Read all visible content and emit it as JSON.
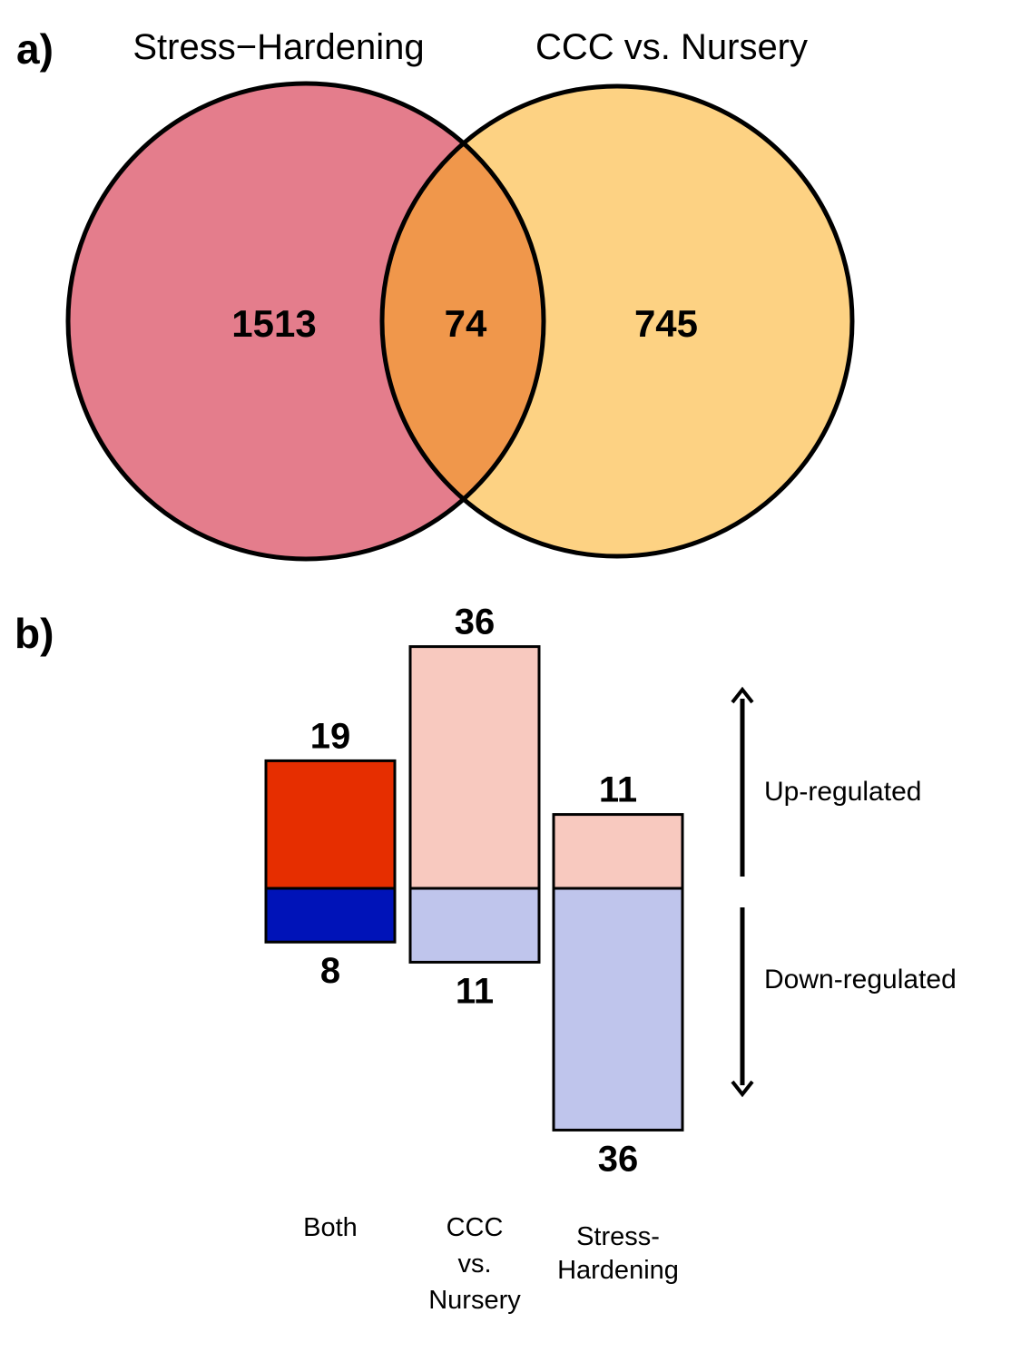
{
  "panel_a": {
    "label": "a)"
  },
  "panel_b": {
    "label": "b)"
  },
  "chart_data": [
    {
      "type": "venn",
      "sets": [
        {
          "name": "Stress−Hardening",
          "only_count": "1513",
          "color": "#e47d8c"
        },
        {
          "name": "CCC vs. Nursery",
          "only_count": "745",
          "color": "#fdd283"
        }
      ],
      "intersection": {
        "count": "74",
        "color": "#f0974b"
      }
    },
    {
      "type": "bar",
      "categories": [
        {
          "lines": [
            "Both"
          ]
        },
        {
          "lines": [
            "CCC",
            "vs.",
            "Nursery"
          ]
        },
        {
          "lines": [
            "Stress-",
            "Hardening"
          ]
        }
      ],
      "series": [
        {
          "name": "Up-regulated",
          "values": [
            19,
            36,
            11
          ],
          "colors": [
            "#e62e00",
            "#f8c9bf",
            "#f8c9bf"
          ]
        },
        {
          "name": "Down-regulated",
          "values": [
            8,
            11,
            36
          ],
          "colors": [
            "#0013b8",
            "#bfc5ec",
            "#bfc5ec"
          ]
        }
      ],
      "direction_labels": {
        "up": "Up-regulated",
        "down": "Down-regulated"
      }
    }
  ]
}
